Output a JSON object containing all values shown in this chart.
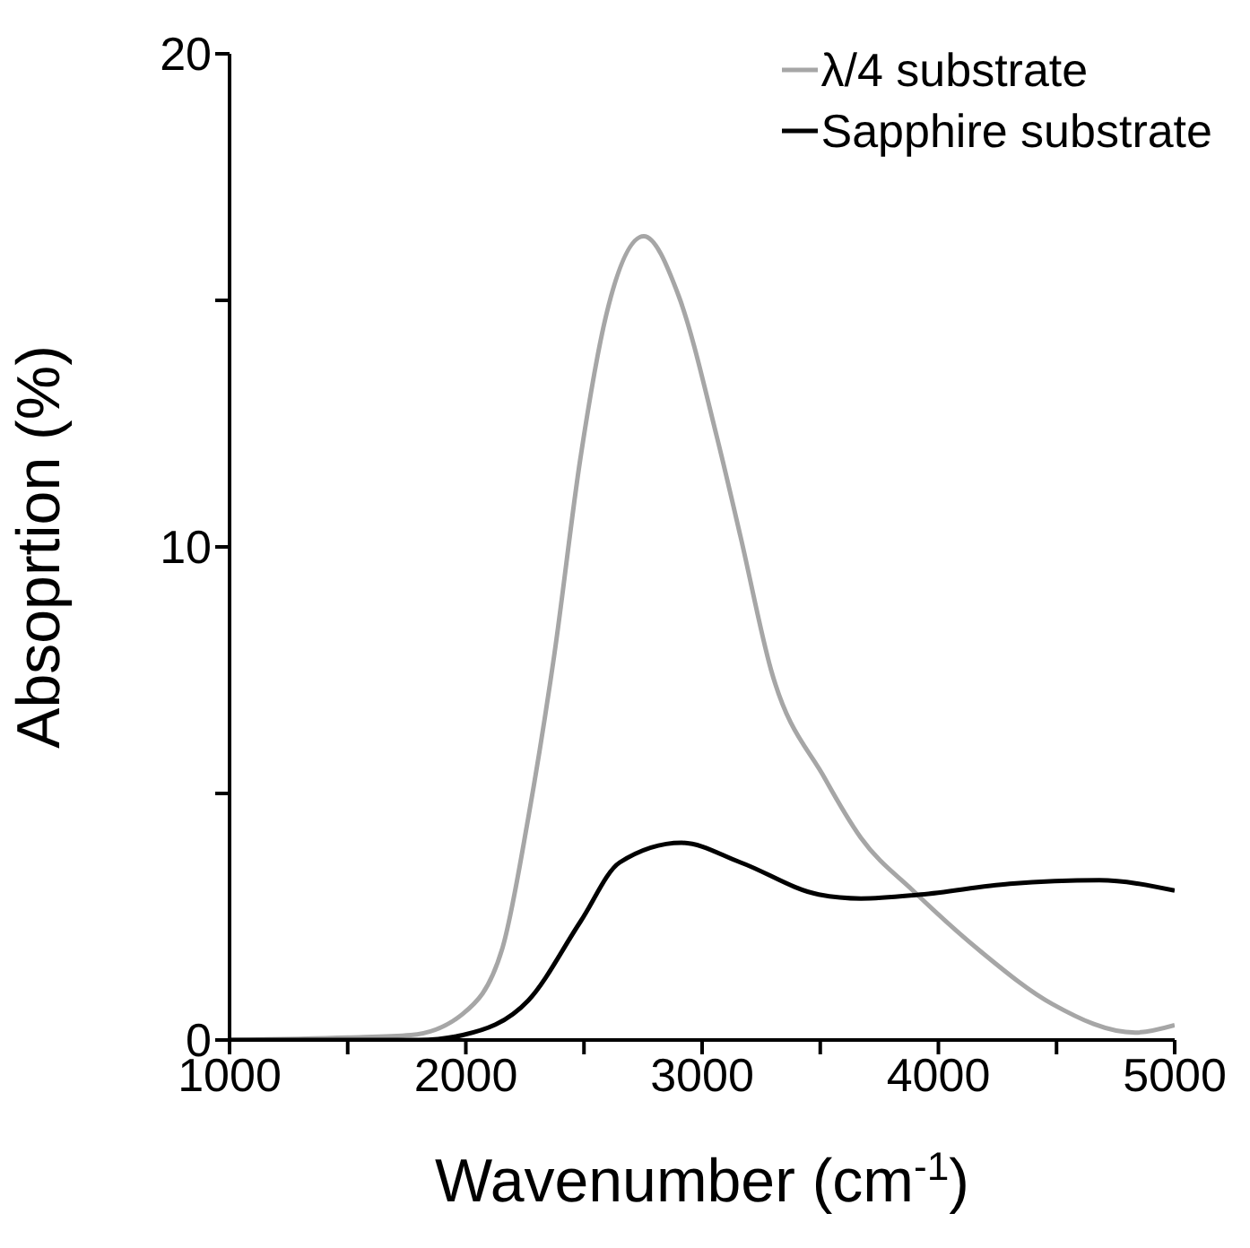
{
  "chart_data": {
    "type": "line",
    "xlabel": "Wavenumber (cm$^{-1}$)",
    "ylabel": "Absoprtion (%)",
    "xlim": [
      1000,
      5000
    ],
    "xticks": [
      1000,
      {
        "value": 1500,
        "label": null
      },
      2000,
      {
        "value": 2500,
        "label": null
      },
      3000,
      {
        "value": 3500,
        "label": null
      },
      4000,
      {
        "value": 4500,
        "label": null
      },
      5000
    ],
    "ylim": [
      0,
      20
    ],
    "yticks": [
      0,
      {
        "value": 5,
        "label": null
      },
      10,
      {
        "value": 15,
        "label": null
      },
      20
    ],
    "legend": "top right",
    "marker": "none",
    "line_style": "solid",
    "series": [
      {
        "name": "λ/4 substrate",
        "color": "#a6a6a6",
        "x": [
          1000,
          1500,
          1767,
          1987,
          2154,
          2264,
          2374,
          2485,
          2594,
          2753,
          2900,
          3064,
          3163,
          3292,
          3520,
          3672,
          3899,
          4178,
          4482,
          4833,
          5000
        ],
        "values": [
          0,
          0.05,
          0.1,
          0.53,
          1.85,
          4.5,
          7.8,
          11.8,
          14.7,
          16.3,
          15.1,
          12.2,
          10.2,
          7.5,
          5.3,
          4.1,
          3.0,
          1.8,
          0.73,
          0.15,
          0.3
        ]
      },
      {
        "name": "Sapphire substrate",
        "color": "#000000",
        "x": [
          1000,
          1500,
          1800,
          1987,
          2264,
          2485,
          2651,
          2913,
          3163,
          3494,
          3672,
          3924,
          4302,
          4681,
          5000
        ],
        "values": [
          0,
          0,
          0,
          0.1,
          0.8,
          2.4,
          3.6,
          4.0,
          3.6,
          2.95,
          2.87,
          2.95,
          3.17,
          3.24,
          3.03
        ]
      }
    ]
  }
}
